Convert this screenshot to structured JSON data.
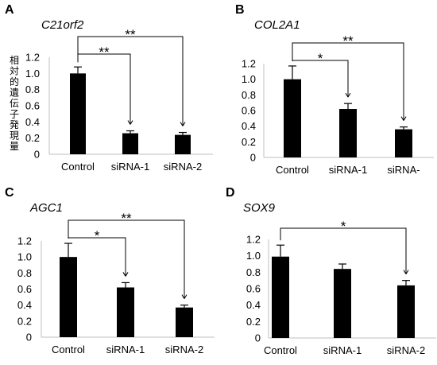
{
  "ylabel": "相対的遺伝子発現量",
  "chart_data": [
    {
      "type": "bar",
      "panel": "A",
      "title": "C21orf2",
      "categories": [
        "Control",
        "siRNA-1",
        "siRNA-2"
      ],
      "values": [
        1.0,
        0.26,
        0.24
      ],
      "errors": [
        0.08,
        0.03,
        0.03
      ],
      "ylim": [
        0,
        1.2
      ],
      "yticks": [
        "1.2",
        "1.0",
        "0.8",
        "0.6",
        "0.4",
        "0.2",
        "0"
      ],
      "significance": [
        {
          "from": 0,
          "to": 1,
          "label": "**"
        },
        {
          "from": 0,
          "to": 2,
          "label": "**"
        }
      ]
    },
    {
      "type": "bar",
      "panel": "B",
      "title": "COL2A1",
      "categories": [
        "Control",
        "siRNA-1",
        "siRNA-"
      ],
      "values": [
        1.0,
        0.62,
        0.36
      ],
      "errors": [
        0.17,
        0.07,
        0.03
      ],
      "ylim": [
        0,
        1.2
      ],
      "yticks": [
        "1.2",
        "1.0",
        "0.8",
        "0.6",
        "0.4",
        "0.2",
        "0"
      ],
      "significance": [
        {
          "from": 0,
          "to": 1,
          "label": "*"
        },
        {
          "from": 0,
          "to": 2,
          "label": "**"
        }
      ]
    },
    {
      "type": "bar",
      "panel": "C",
      "title": "AGC1",
      "categories": [
        "Control",
        "siRNA-1",
        "siRNA-2"
      ],
      "values": [
        1.0,
        0.62,
        0.37
      ],
      "errors": [
        0.17,
        0.06,
        0.03
      ],
      "ylim": [
        0,
        1.2
      ],
      "yticks": [
        "1.2",
        "1.0",
        "0.8",
        "0.6",
        "0.4",
        "0.2",
        "0"
      ],
      "significance": [
        {
          "from": 0,
          "to": 1,
          "label": "*"
        },
        {
          "from": 0,
          "to": 2,
          "label": "**"
        }
      ]
    },
    {
      "type": "bar",
      "panel": "D",
      "title": "SOX9",
      "categories": [
        "Control",
        "siRNA-1",
        "siRNA-2"
      ],
      "values": [
        0.99,
        0.84,
        0.64
      ],
      "errors": [
        0.14,
        0.06,
        0.06
      ],
      "ylim": [
        0,
        1.2
      ],
      "yticks": [
        "1.2",
        "1.0",
        "0.8",
        "0.6",
        "0.4",
        "0.2",
        "0"
      ],
      "significance": [
        {
          "from": 0,
          "to": 2,
          "label": "*"
        }
      ]
    }
  ]
}
